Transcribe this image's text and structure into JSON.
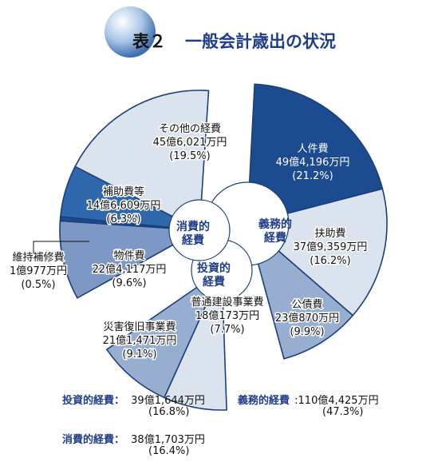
{
  "header": {
    "number": "表２",
    "title": "一般会計歳出の状況"
  },
  "chart_data": {
    "type": "pie",
    "unit": "万円",
    "groups": [
      {
        "name": "義務的経費",
        "label_lines": [
          "義務的",
          "経費"
        ],
        "items": [
          {
            "label": "人件費",
            "amount": "49億4,196万円",
            "percent": "(21.2%)",
            "value": 21.2,
            "color": "#1d4b8f"
          },
          {
            "label": "扶助費",
            "amount": "37億9,359万円",
            "percent": "(16.2%)",
            "value": 16.2,
            "color": "#dbe3ef"
          },
          {
            "label": "公債費",
            "amount": "23億870万円",
            "percent": "(9.9%)",
            "value": 9.9,
            "color": "#98aed0"
          }
        ]
      },
      {
        "name": "投資的経費",
        "label_lines": [
          "投資的",
          "経費"
        ],
        "items": [
          {
            "label": "普通建設事業費",
            "amount": "18億173万円",
            "percent": "(7.7%)",
            "value": 7.7,
            "color": "#dbe3ef"
          },
          {
            "label": "災害復旧事業費",
            "amount": "21億1,471万円",
            "percent": "(9.1%)",
            "value": 9.1,
            "color": "#98aed0"
          }
        ]
      },
      {
        "name": "消費的経費",
        "label_lines": [
          "消費的",
          "経費"
        ],
        "items": [
          {
            "label": "物件費",
            "amount": "22億4,117万円",
            "percent": "(9.6%)",
            "value": 9.6,
            "color": "#7d98c4"
          },
          {
            "label": "維持補修費",
            "amount": "1億977万円",
            "percent": "(0.5%)",
            "value": 0.5,
            "color": "#1d4b8f"
          },
          {
            "label": "補助費等",
            "amount": "14億6,609万円",
            "percent": "(6.3%)",
            "value": 6.3,
            "color": "#2f68ad"
          },
          {
            "label": "その他の経費",
            "amount": "45億6,021万円",
            "percent": "(19.5%)",
            "value": 19.5,
            "color": "#dbe3ef"
          }
        ]
      }
    ]
  },
  "summary": {
    "investment": {
      "label": "投資的経費：",
      "amount": "39億1,644万円",
      "percent": "(16.8%)"
    },
    "mandatory": {
      "label": "義務的経費",
      "amount": ":110億4,425万円",
      "percent": "(47.3%)"
    },
    "consumption": {
      "label": "消費的経費：",
      "amount": "38億1,703万円",
      "percent": "(16.4%)"
    }
  },
  "colors": {
    "ring_stroke": "#1a3f7a",
    "group_label": "#1f3d8a",
    "title": "#1f3d8a"
  }
}
